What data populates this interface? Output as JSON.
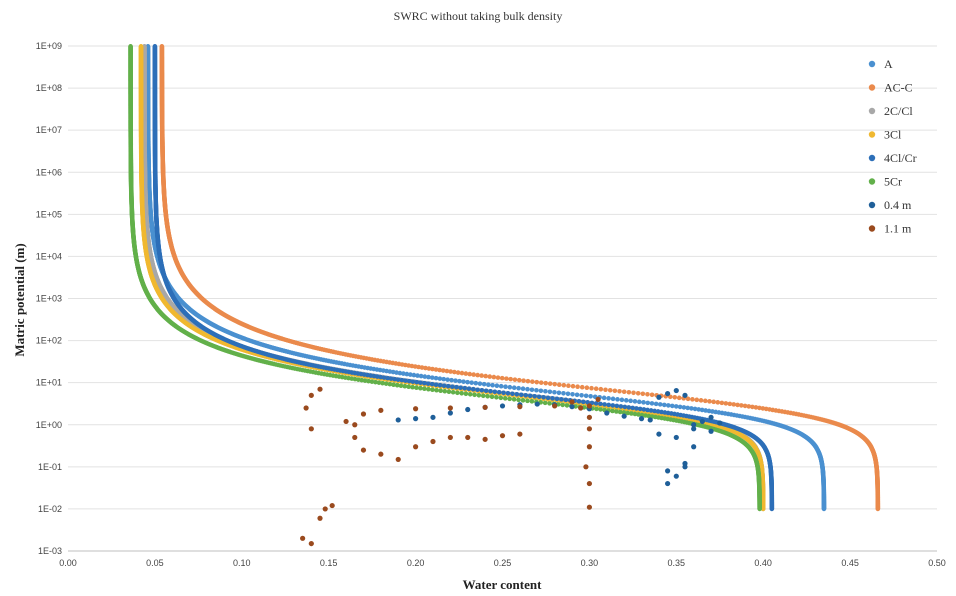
{
  "chart_data": {
    "type": "scatter",
    "title": "SWRC without taking bulk density",
    "xlabel": "Water content",
    "ylabel": "Matric potential (m)",
    "xlim": [
      0.0,
      0.5
    ],
    "ylim_log10": [
      -3,
      9
    ],
    "y_scale": "log",
    "grid": "horizontal",
    "legend_position": "right",
    "x_ticks": [
      "0.00",
      "0.05",
      "0.10",
      "0.15",
      "0.20",
      "0.25",
      "0.30",
      "0.35",
      "0.40",
      "0.45",
      "0.50"
    ],
    "y_ticks": [
      "1E-03",
      "1E-02",
      "1E-01",
      "1E+00",
      "1E+01",
      "1E+02",
      "1E+03",
      "1E+04",
      "1E+05",
      "1E+06",
      "1E+07",
      "1E+08",
      "1E+09"
    ],
    "y_tick_exponents": [
      -3,
      -2,
      -1,
      0,
      1,
      2,
      3,
      4,
      5,
      6,
      7,
      8,
      9
    ],
    "series": [
      {
        "name": "A",
        "color": "#4a90d0",
        "kind": "vg",
        "theta_r": 0.046,
        "theta_s": 0.435,
        "alpha": 0.38,
        "n": 1.52
      },
      {
        "name": "AC-C",
        "color": "#ea8a4c",
        "kind": "vg",
        "theta_r": 0.054,
        "theta_s": 0.466,
        "alpha": 0.32,
        "n": 1.5
      },
      {
        "name": "2C/Cl",
        "color": "#a8a8a8",
        "kind": "vg",
        "theta_r": 0.044,
        "theta_s": 0.4,
        "alpha": 0.4,
        "n": 1.55
      },
      {
        "name": "3Cl",
        "color": "#f0b830",
        "kind": "vg",
        "theta_r": 0.042,
        "theta_s": 0.4,
        "alpha": 0.42,
        "n": 1.56
      },
      {
        "name": "4Cl/Cr",
        "color": "#2d6fb8",
        "kind": "vg",
        "theta_r": 0.05,
        "theta_s": 0.405,
        "alpha": 0.4,
        "n": 1.58
      },
      {
        "name": "5Cr",
        "color": "#62b04a",
        "kind": "vg",
        "theta_r": 0.036,
        "theta_s": 0.398,
        "alpha": 0.5,
        "n": 1.56
      },
      {
        "name": "0.4 m",
        "color": "#1f5f99",
        "kind": "measured",
        "points": [
          [
            0.19,
            1.3
          ],
          [
            0.2,
            1.4
          ],
          [
            0.21,
            1.5
          ],
          [
            0.22,
            1.9
          ],
          [
            0.23,
            2.3
          ],
          [
            0.24,
            2.6
          ],
          [
            0.25,
            2.8
          ],
          [
            0.26,
            3.0
          ],
          [
            0.27,
            3.1
          ],
          [
            0.28,
            3.0
          ],
          [
            0.29,
            2.7
          ],
          [
            0.3,
            2.4
          ],
          [
            0.31,
            1.9
          ],
          [
            0.32,
            1.6
          ],
          [
            0.33,
            1.4
          ],
          [
            0.335,
            1.3
          ],
          [
            0.34,
            4.5
          ],
          [
            0.345,
            5.5
          ],
          [
            0.35,
            6.5
          ],
          [
            0.355,
            5.0
          ],
          [
            0.345,
            0.08
          ],
          [
            0.35,
            0.06
          ],
          [
            0.345,
            0.04
          ],
          [
            0.355,
            0.1
          ],
          [
            0.36,
            1.0
          ],
          [
            0.365,
            1.2
          ],
          [
            0.37,
            1.5
          ],
          [
            0.375,
            1.1
          ],
          [
            0.36,
            0.8
          ],
          [
            0.37,
            0.7
          ],
          [
            0.34,
            0.6
          ],
          [
            0.35,
            0.5
          ],
          [
            0.36,
            0.3
          ],
          [
            0.355,
            0.12
          ]
        ]
      },
      {
        "name": "1.1 m",
        "color": "#9a4a1e",
        "kind": "measured",
        "points": [
          [
            0.135,
            0.002
          ],
          [
            0.14,
            0.0015
          ],
          [
            0.145,
            0.006
          ],
          [
            0.148,
            0.01
          ],
          [
            0.152,
            0.012
          ],
          [
            0.14,
            0.8
          ],
          [
            0.137,
            2.5
          ],
          [
            0.14,
            5.0
          ],
          [
            0.145,
            7.0
          ],
          [
            0.16,
            1.2
          ],
          [
            0.17,
            1.8
          ],
          [
            0.18,
            2.2
          ],
          [
            0.2,
            2.4
          ],
          [
            0.22,
            2.5
          ],
          [
            0.24,
            2.6
          ],
          [
            0.26,
            2.7
          ],
          [
            0.28,
            2.8
          ],
          [
            0.29,
            3.5
          ],
          [
            0.295,
            2.5
          ],
          [
            0.3,
            1.5
          ],
          [
            0.3,
            0.8
          ],
          [
            0.3,
            0.3
          ],
          [
            0.298,
            0.1
          ],
          [
            0.3,
            0.04
          ],
          [
            0.3,
            0.011
          ],
          [
            0.19,
            0.15
          ],
          [
            0.2,
            0.3
          ],
          [
            0.21,
            0.4
          ],
          [
            0.22,
            0.5
          ],
          [
            0.23,
            0.5
          ],
          [
            0.24,
            0.45
          ],
          [
            0.25,
            0.55
          ],
          [
            0.26,
            0.6
          ],
          [
            0.17,
            0.25
          ],
          [
            0.18,
            0.2
          ],
          [
            0.3,
            2.8
          ],
          [
            0.305,
            4.0
          ],
          [
            0.165,
            1.0
          ],
          [
            0.165,
            0.5
          ]
        ]
      }
    ]
  }
}
